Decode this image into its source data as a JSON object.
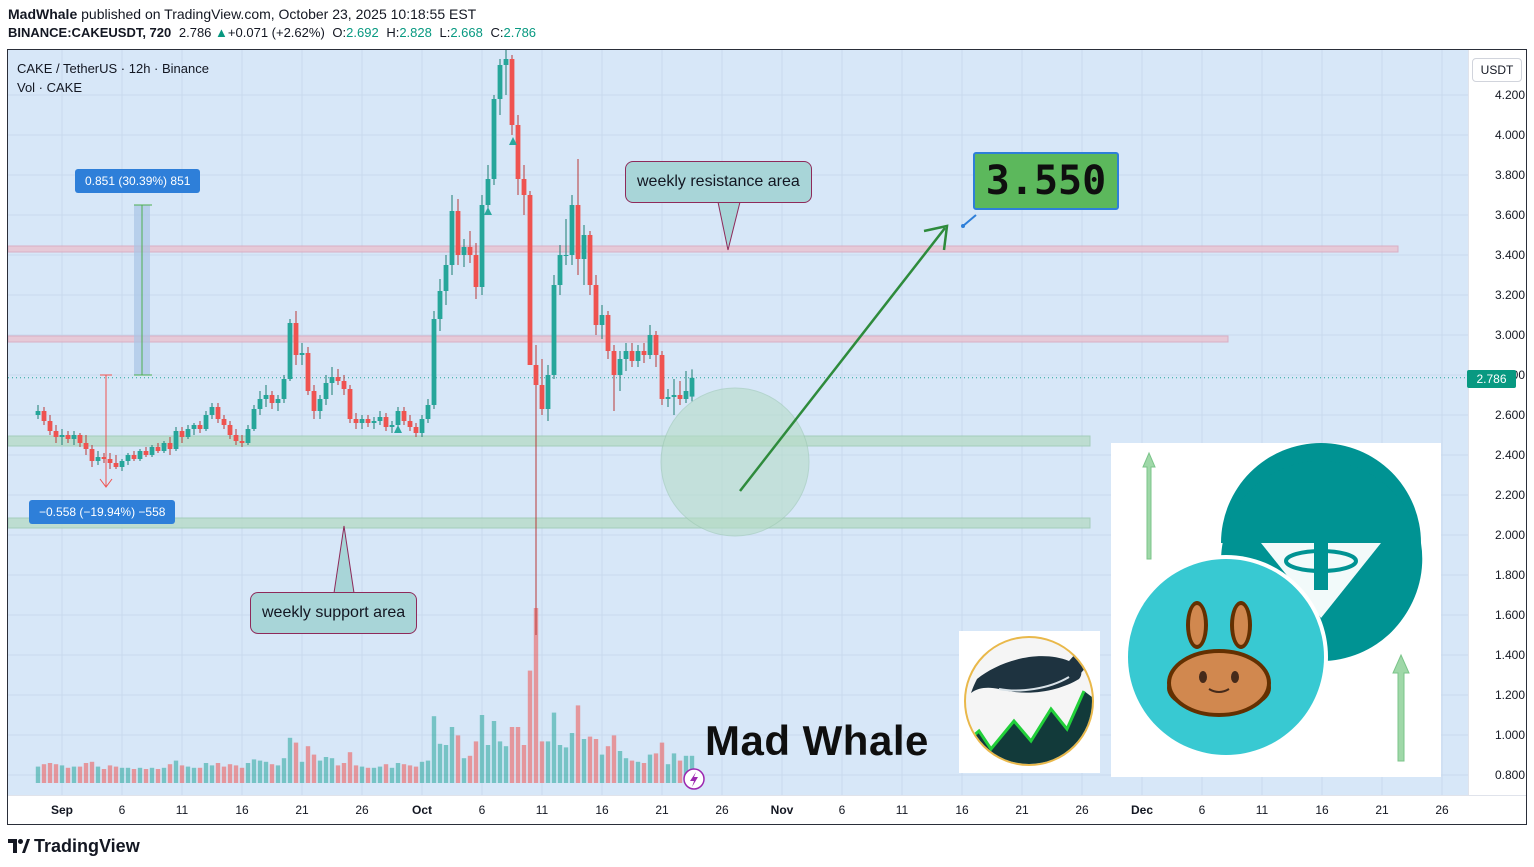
{
  "header": {
    "author": "MadWhale",
    "published_text": "published on TradingView.com, October 23, 2025 10:18:55 EST",
    "symbol": "BINANCE:CAKEUSDT, 720",
    "last": "2.786",
    "change": "+0.071 (+2.62%)",
    "o_label": "O:",
    "o": "2.692",
    "h_label": "H:",
    "h": "2.828",
    "l_label": "L:",
    "l": "2.668",
    "c_label": "C:",
    "c": "2.786"
  },
  "legend": {
    "pair": "CAKE / TetherUS · 12h · Binance",
    "volume": "Vol · CAKE"
  },
  "price_axis": {
    "currency_button": "USDT",
    "last_price_label": "2.786",
    "labels": [
      "4.200",
      "4.000",
      "3.800",
      "3.600",
      "3.400",
      "3.200",
      "3.000",
      "2.800",
      "2.600",
      "2.400",
      "2.200",
      "2.000",
      "1.800",
      "1.600",
      "1.400",
      "1.200",
      "1.000",
      "0.800"
    ]
  },
  "time_axis": {
    "labels": [
      {
        "t": "Sep",
        "bold": true
      },
      {
        "t": "6"
      },
      {
        "t": "11"
      },
      {
        "t": "16"
      },
      {
        "t": "21"
      },
      {
        "t": "26"
      },
      {
        "t": "Oct",
        "bold": true
      },
      {
        "t": "6"
      },
      {
        "t": "11"
      },
      {
        "t": "16"
      },
      {
        "t": "21"
      },
      {
        "t": "26"
      },
      {
        "t": "Nov",
        "bold": true
      },
      {
        "t": "6"
      },
      {
        "t": "11"
      },
      {
        "t": "16"
      },
      {
        "t": "21"
      },
      {
        "t": "26"
      },
      {
        "t": "Dec",
        "bold": true
      },
      {
        "t": "6"
      },
      {
        "t": "11"
      },
      {
        "t": "16"
      },
      {
        "t": "21"
      },
      {
        "t": "26"
      }
    ]
  },
  "annotations": {
    "measure_up": "0.851 (30.39%) 851",
    "measure_down": "−0.558 (−19.94%) −558",
    "resistance_label": "weekly resistance area",
    "support_label": "weekly support area",
    "target": "3.550",
    "brand": "Mad Whale"
  },
  "footer": {
    "brand": "TradingView"
  },
  "colors": {
    "up": "#26a69a",
    "down": "#ef5350",
    "plot_bg": "#d7e7f8",
    "arrow": "#2e8b3c",
    "zone_green": "#b9dccb",
    "zone_pink": "#e8c6d4"
  },
  "chart_data": {
    "type": "candlestick",
    "title": "CAKE / TetherUS · 12h · Binance",
    "ylim": [
      0.7,
      4.45
    ],
    "x_range": [
      "2025-08-30",
      "2025-12-29"
    ],
    "resistance_levels": [
      2.98,
      3.43
    ],
    "support_levels": [
      2.06,
      2.47
    ],
    "target": 3.55,
    "candles": [
      {
        "d": "2025-08-30T00",
        "o": 2.6,
        "h": 2.65,
        "l": 2.58,
        "c": 2.62
      },
      {
        "d": "2025-08-30T12",
        "o": 2.62,
        "h": 2.64,
        "l": 2.55,
        "c": 2.57
      },
      {
        "d": "2025-08-31T00",
        "o": 2.57,
        "h": 2.6,
        "l": 2.5,
        "c": 2.52
      },
      {
        "d": "2025-08-31T12",
        "o": 2.52,
        "h": 2.55,
        "l": 2.46,
        "c": 2.49
      },
      {
        "d": "2025-09-01T00",
        "o": 2.49,
        "h": 2.53,
        "l": 2.45,
        "c": 2.5
      },
      {
        "d": "2025-09-01T12",
        "o": 2.5,
        "h": 2.52,
        "l": 2.46,
        "c": 2.48
      },
      {
        "d": "2025-09-02T00",
        "o": 2.48,
        "h": 2.52,
        "l": 2.45,
        "c": 2.5
      },
      {
        "d": "2025-09-02T12",
        "o": 2.5,
        "h": 2.51,
        "l": 2.44,
        "c": 2.46
      },
      {
        "d": "2025-09-03T00",
        "o": 2.46,
        "h": 2.5,
        "l": 2.4,
        "c": 2.43
      },
      {
        "d": "2025-09-03T12",
        "o": 2.43,
        "h": 2.45,
        "l": 2.34,
        "c": 2.37
      },
      {
        "d": "2025-09-04T00",
        "o": 2.37,
        "h": 2.42,
        "l": 2.35,
        "c": 2.39
      },
      {
        "d": "2025-09-04T12",
        "o": 2.39,
        "h": 2.41,
        "l": 2.36,
        "c": 2.38
      },
      {
        "d": "2025-09-05T00",
        "o": 2.38,
        "h": 2.41,
        "l": 2.33,
        "c": 2.36
      },
      {
        "d": "2025-09-05T12",
        "o": 2.36,
        "h": 2.4,
        "l": 2.33,
        "c": 2.34
      },
      {
        "d": "2025-09-06T00",
        "o": 2.34,
        "h": 2.38,
        "l": 2.32,
        "c": 2.37
      },
      {
        "d": "2025-09-06T12",
        "o": 2.37,
        "h": 2.41,
        "l": 2.35,
        "c": 2.4
      },
      {
        "d": "2025-09-07T00",
        "o": 2.4,
        "h": 2.42,
        "l": 2.37,
        "c": 2.38
      },
      {
        "d": "2025-09-07T12",
        "o": 2.38,
        "h": 2.43,
        "l": 2.37,
        "c": 2.42
      },
      {
        "d": "2025-09-08T00",
        "o": 2.42,
        "h": 2.44,
        "l": 2.39,
        "c": 2.4
      },
      {
        "d": "2025-09-08T12",
        "o": 2.4,
        "h": 2.45,
        "l": 2.39,
        "c": 2.44
      },
      {
        "d": "2025-09-09T00",
        "o": 2.44,
        "h": 2.46,
        "l": 2.41,
        "c": 2.42
      },
      {
        "d": "2025-09-09T12",
        "o": 2.42,
        "h": 2.47,
        "l": 2.41,
        "c": 2.46
      },
      {
        "d": "2025-09-10T00",
        "o": 2.46,
        "h": 2.49,
        "l": 2.4,
        "c": 2.43
      },
      {
        "d": "2025-09-10T12",
        "o": 2.43,
        "h": 2.54,
        "l": 2.42,
        "c": 2.52
      },
      {
        "d": "2025-09-11T00",
        "o": 2.52,
        "h": 2.54,
        "l": 2.46,
        "c": 2.49
      },
      {
        "d": "2025-09-11T12",
        "o": 2.49,
        "h": 2.55,
        "l": 2.48,
        "c": 2.53
      },
      {
        "d": "2025-09-12T00",
        "o": 2.53,
        "h": 2.56,
        "l": 2.5,
        "c": 2.55
      },
      {
        "d": "2025-09-12T12",
        "o": 2.55,
        "h": 2.57,
        "l": 2.51,
        "c": 2.53
      },
      {
        "d": "2025-09-13T00",
        "o": 2.53,
        "h": 2.62,
        "l": 2.52,
        "c": 2.6
      },
      {
        "d": "2025-09-13T12",
        "o": 2.6,
        "h": 2.66,
        "l": 2.58,
        "c": 2.64
      },
      {
        "d": "2025-09-14T00",
        "o": 2.64,
        "h": 2.66,
        "l": 2.56,
        "c": 2.58
      },
      {
        "d": "2025-09-14T12",
        "o": 2.58,
        "h": 2.6,
        "l": 2.53,
        "c": 2.55
      },
      {
        "d": "2025-09-15T00",
        "o": 2.55,
        "h": 2.57,
        "l": 2.48,
        "c": 2.5
      },
      {
        "d": "2025-09-15T12",
        "o": 2.5,
        "h": 2.53,
        "l": 2.45,
        "c": 2.47
      },
      {
        "d": "2025-09-16T00",
        "o": 2.47,
        "h": 2.5,
        "l": 2.44,
        "c": 2.46
      },
      {
        "d": "2025-09-16T12",
        "o": 2.46,
        "h": 2.55,
        "l": 2.45,
        "c": 2.53
      },
      {
        "d": "2025-09-17T00",
        "o": 2.53,
        "h": 2.65,
        "l": 2.52,
        "c": 2.63
      },
      {
        "d": "2025-09-17T12",
        "o": 2.63,
        "h": 2.72,
        "l": 2.6,
        "c": 2.68
      },
      {
        "d": "2025-09-18T00",
        "o": 2.68,
        "h": 2.75,
        "l": 2.64,
        "c": 2.7
      },
      {
        "d": "2025-09-18T12",
        "o": 2.7,
        "h": 2.72,
        "l": 2.63,
        "c": 2.66
      },
      {
        "d": "2025-09-19T00",
        "o": 2.66,
        "h": 2.7,
        "l": 2.62,
        "c": 2.68
      },
      {
        "d": "2025-09-19T12",
        "o": 2.68,
        "h": 2.8,
        "l": 2.66,
        "c": 2.78
      },
      {
        "d": "2025-09-20T00",
        "o": 2.78,
        "h": 3.08,
        "l": 2.77,
        "c": 3.06
      },
      {
        "d": "2025-09-20T12",
        "o": 3.06,
        "h": 3.12,
        "l": 2.85,
        "c": 2.9
      },
      {
        "d": "2025-09-21T00",
        "o": 2.9,
        "h": 2.96,
        "l": 2.85,
        "c": 2.91
      },
      {
        "d": "2025-09-21T12",
        "o": 2.91,
        "h": 2.94,
        "l": 2.7,
        "c": 2.72
      },
      {
        "d": "2025-09-22T00",
        "o": 2.72,
        "h": 2.75,
        "l": 2.58,
        "c": 2.62
      },
      {
        "d": "2025-09-22T12",
        "o": 2.62,
        "h": 2.7,
        "l": 2.58,
        "c": 2.68
      },
      {
        "d": "2025-09-23T00",
        "o": 2.68,
        "h": 2.8,
        "l": 2.65,
        "c": 2.76
      },
      {
        "d": "2025-09-23T12",
        "o": 2.76,
        "h": 2.84,
        "l": 2.7,
        "c": 2.79
      },
      {
        "d": "2025-09-24T00",
        "o": 2.79,
        "h": 2.83,
        "l": 2.75,
        "c": 2.77
      },
      {
        "d": "2025-09-24T12",
        "o": 2.77,
        "h": 2.8,
        "l": 2.7,
        "c": 2.73
      },
      {
        "d": "2025-09-25T00",
        "o": 2.73,
        "h": 2.75,
        "l": 2.56,
        "c": 2.58
      },
      {
        "d": "2025-09-25T12",
        "o": 2.58,
        "h": 2.61,
        "l": 2.53,
        "c": 2.56
      },
      {
        "d": "2025-09-26T00",
        "o": 2.56,
        "h": 2.6,
        "l": 2.53,
        "c": 2.58
      },
      {
        "d": "2025-09-26T12",
        "o": 2.58,
        "h": 2.6,
        "l": 2.54,
        "c": 2.56
      },
      {
        "d": "2025-09-27T00",
        "o": 2.56,
        "h": 2.59,
        "l": 2.53,
        "c": 2.57
      },
      {
        "d": "2025-09-27T12",
        "o": 2.57,
        "h": 2.62,
        "l": 2.55,
        "c": 2.59
      },
      {
        "d": "2025-09-28T00",
        "o": 2.59,
        "h": 2.61,
        "l": 2.52,
        "c": 2.54
      },
      {
        "d": "2025-09-28T12",
        "o": 2.54,
        "h": 2.57,
        "l": 2.51,
        "c": 2.55
      },
      {
        "d": "2025-09-29T00",
        "o": 2.55,
        "h": 2.64,
        "l": 2.54,
        "c": 2.62
      },
      {
        "d": "2025-09-29T12",
        "o": 2.62,
        "h": 2.64,
        "l": 2.55,
        "c": 2.57
      },
      {
        "d": "2025-09-30T00",
        "o": 2.57,
        "h": 2.6,
        "l": 2.52,
        "c": 2.54
      },
      {
        "d": "2025-09-30T12",
        "o": 2.54,
        "h": 2.56,
        "l": 2.49,
        "c": 2.51
      },
      {
        "d": "2025-10-01T00",
        "o": 2.51,
        "h": 2.6,
        "l": 2.49,
        "c": 2.58
      },
      {
        "d": "2025-10-01T12",
        "o": 2.58,
        "h": 2.68,
        "l": 2.56,
        "c": 2.65
      },
      {
        "d": "2025-10-02T00",
        "o": 2.65,
        "h": 3.12,
        "l": 2.63,
        "c": 3.08
      },
      {
        "d": "2025-10-02T12",
        "o": 3.08,
        "h": 3.28,
        "l": 3.02,
        "c": 3.22
      },
      {
        "d": "2025-10-03T00",
        "o": 3.22,
        "h": 3.4,
        "l": 3.15,
        "c": 3.35
      },
      {
        "d": "2025-10-03T12",
        "o": 3.35,
        "h": 3.7,
        "l": 3.3,
        "c": 3.62
      },
      {
        "d": "2025-10-04T00",
        "o": 3.62,
        "h": 3.68,
        "l": 3.35,
        "c": 3.4
      },
      {
        "d": "2025-10-04T12",
        "o": 3.4,
        "h": 3.48,
        "l": 3.34,
        "c": 3.44
      },
      {
        "d": "2025-10-05T00",
        "o": 3.44,
        "h": 3.52,
        "l": 3.36,
        "c": 3.4
      },
      {
        "d": "2025-10-05T12",
        "o": 3.4,
        "h": 3.46,
        "l": 3.18,
        "c": 3.24
      },
      {
        "d": "2025-10-06T00",
        "o": 3.24,
        "h": 3.7,
        "l": 3.2,
        "c": 3.65
      },
      {
        "d": "2025-10-06T12",
        "o": 3.65,
        "h": 3.85,
        "l": 3.6,
        "c": 3.78
      },
      {
        "d": "2025-10-07T00",
        "o": 3.78,
        "h": 4.2,
        "l": 3.75,
        "c": 4.18
      },
      {
        "d": "2025-10-07T12",
        "o": 4.18,
        "h": 4.38,
        "l": 4.1,
        "c": 4.35
      },
      {
        "d": "2025-10-08T00",
        "o": 4.35,
        "h": 4.44,
        "l": 4.2,
        "c": 4.38
      },
      {
        "d": "2025-10-08T12",
        "o": 4.38,
        "h": 4.4,
        "l": 4.0,
        "c": 4.05
      },
      {
        "d": "2025-10-09T00",
        "o": 4.05,
        "h": 4.1,
        "l": 3.7,
        "c": 3.78
      },
      {
        "d": "2025-10-09T12",
        "o": 3.78,
        "h": 3.85,
        "l": 3.6,
        "c": 3.7
      },
      {
        "d": "2025-10-10T00",
        "o": 3.7,
        "h": 3.72,
        "l": 2.85,
        "c": 2.85
      },
      {
        "d": "2025-10-10T12",
        "o": 2.85,
        "h": 2.95,
        "l": 1.5,
        "c": 2.75
      },
      {
        "d": "2025-10-11T00",
        "o": 2.75,
        "h": 2.88,
        "l": 2.6,
        "c": 2.63
      },
      {
        "d": "2025-10-11T12",
        "o": 2.63,
        "h": 2.85,
        "l": 2.57,
        "c": 2.8
      },
      {
        "d": "2025-10-12T00",
        "o": 2.8,
        "h": 3.3,
        "l": 2.78,
        "c": 3.25
      },
      {
        "d": "2025-10-12T12",
        "o": 3.25,
        "h": 3.45,
        "l": 3.2,
        "c": 3.4
      },
      {
        "d": "2025-10-13T00",
        "o": 3.4,
        "h": 3.58,
        "l": 3.35,
        "c": 3.4
      },
      {
        "d": "2025-10-13T12",
        "o": 3.4,
        "h": 3.7,
        "l": 3.35,
        "c": 3.65
      },
      {
        "d": "2025-10-14T00",
        "o": 3.65,
        "h": 3.88,
        "l": 3.3,
        "c": 3.38
      },
      {
        "d": "2025-10-14T12",
        "o": 3.38,
        "h": 3.55,
        "l": 3.25,
        "c": 3.5
      },
      {
        "d": "2025-10-15T00",
        "o": 3.5,
        "h": 3.52,
        "l": 3.2,
        "c": 3.25
      },
      {
        "d": "2025-10-15T12",
        "o": 3.25,
        "h": 3.3,
        "l": 3.0,
        "c": 3.05
      },
      {
        "d": "2025-10-16T00",
        "o": 3.05,
        "h": 3.15,
        "l": 2.98,
        "c": 3.1
      },
      {
        "d": "2025-10-16T12",
        "o": 3.1,
        "h": 3.12,
        "l": 2.88,
        "c": 2.92
      },
      {
        "d": "2025-10-17T00",
        "o": 2.92,
        "h": 2.95,
        "l": 2.62,
        "c": 2.8
      },
      {
        "d": "2025-10-17T12",
        "o": 2.8,
        "h": 2.92,
        "l": 2.72,
        "c": 2.88
      },
      {
        "d": "2025-10-18T00",
        "o": 2.88,
        "h": 2.96,
        "l": 2.82,
        "c": 2.92
      },
      {
        "d": "2025-10-18T12",
        "o": 2.92,
        "h": 2.96,
        "l": 2.84,
        "c": 2.87
      },
      {
        "d": "2025-10-19T00",
        "o": 2.87,
        "h": 2.95,
        "l": 2.84,
        "c": 2.92
      },
      {
        "d": "2025-10-19T12",
        "o": 2.92,
        "h": 2.96,
        "l": 2.86,
        "c": 2.9
      },
      {
        "d": "2025-10-20T00",
        "o": 2.9,
        "h": 3.05,
        "l": 2.88,
        "c": 3.0
      },
      {
        "d": "2025-10-20T12",
        "o": 3.0,
        "h": 3.02,
        "l": 2.84,
        "c": 2.9
      },
      {
        "d": "2025-10-21T00",
        "o": 2.9,
        "h": 2.92,
        "l": 2.65,
        "c": 2.68
      },
      {
        "d": "2025-10-21T12",
        "o": 2.68,
        "h": 2.73,
        "l": 2.64,
        "c": 2.69
      },
      {
        "d": "2025-10-22T00",
        "o": 2.69,
        "h": 2.78,
        "l": 2.6,
        "c": 2.7
      },
      {
        "d": "2025-10-22T12",
        "o": 2.7,
        "h": 2.77,
        "l": 2.65,
        "c": 2.68
      },
      {
        "d": "2025-10-23T00",
        "o": 2.68,
        "h": 2.82,
        "l": 2.66,
        "c": 2.72
      },
      {
        "d": "2025-10-23T12",
        "o": 2.692,
        "h": 2.828,
        "l": 2.668,
        "c": 2.786
      }
    ]
  }
}
